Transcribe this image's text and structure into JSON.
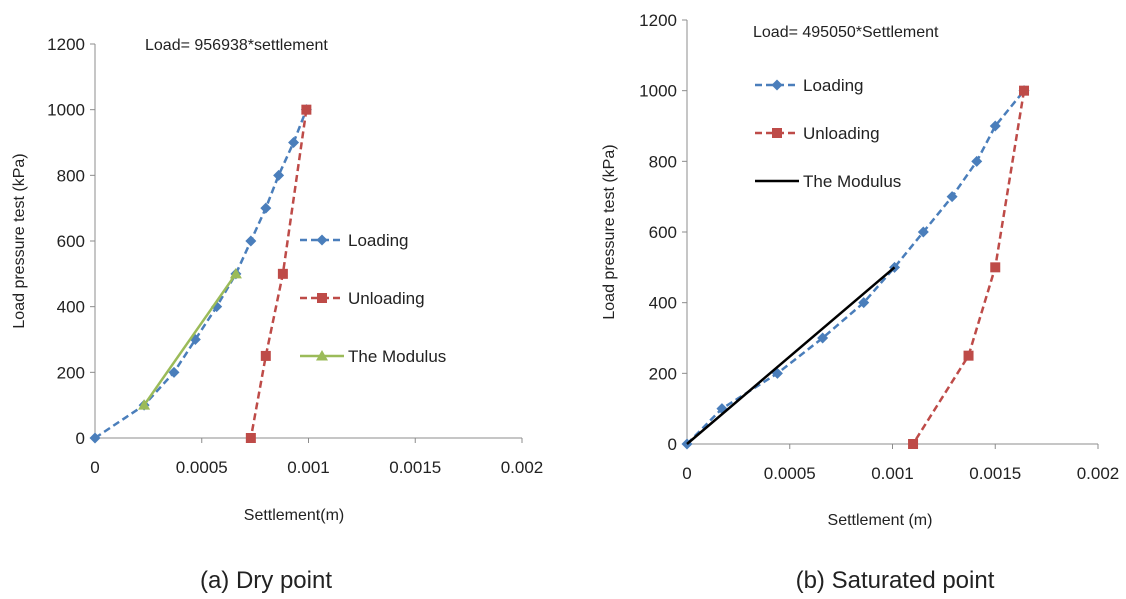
{
  "charts": [
    {
      "caption": "(a) Dry point",
      "chart_data": {
        "type": "line",
        "annotation": "Load= 956938*settlement",
        "xlabel": "Settlement(m)",
        "ylabel": "Load pressure test (kPa)",
        "xlim": [
          0,
          0.002
        ],
        "ylim": [
          0,
          1200
        ],
        "x_ticks": [
          "0",
          "0.0005",
          "0.001",
          "0.0015",
          "0.002"
        ],
        "y_ticks": [
          "0",
          "200",
          "400",
          "600",
          "800",
          "1000",
          "1200"
        ],
        "grid": false,
        "legend_position": "right",
        "series": [
          {
            "name": "Loading",
            "color": "#4a7ebb",
            "marker": "diamond",
            "dash": true,
            "points": [
              [
                0,
                0
              ],
              [
                0.00023,
                100
              ],
              [
                0.00037,
                200
              ],
              [
                0.00047,
                300
              ],
              [
                0.00057,
                400
              ],
              [
                0.00066,
                500
              ],
              [
                0.00073,
                600
              ],
              [
                0.0008,
                700
              ],
              [
                0.00086,
                800
              ],
              [
                0.00093,
                900
              ],
              [
                0.00099,
                1000
              ]
            ]
          },
          {
            "name": "Unloading",
            "color": "#be4b48",
            "marker": "square",
            "dash": true,
            "points": [
              [
                0.00099,
                1000
              ],
              [
                0.00088,
                500
              ],
              [
                0.0008,
                250
              ],
              [
                0.00073,
                0
              ]
            ]
          },
          {
            "name": "The Modulus",
            "color": "#9bbb59",
            "marker": "triangle",
            "dash": false,
            "points": [
              [
                0.00023,
                100
              ],
              [
                0.00066,
                500
              ]
            ]
          }
        ]
      }
    },
    {
      "caption": "(b) Saturated point",
      "chart_data": {
        "type": "line",
        "annotation": "Load= 495050*Settlement",
        "xlabel": "Settlement (m)",
        "ylabel": "Load pressure test (kPa)",
        "xlim": [
          0,
          0.002
        ],
        "ylim": [
          0,
          1200
        ],
        "x_ticks": [
          "0",
          "0.0005",
          "0.001",
          "0.0015",
          "0.002"
        ],
        "y_ticks": [
          "0",
          "200",
          "400",
          "600",
          "800",
          "1000",
          "1200"
        ],
        "grid": false,
        "legend_position": "top-left",
        "series": [
          {
            "name": "Loading",
            "color": "#4a7ebb",
            "marker": "diamond",
            "dash": true,
            "points": [
              [
                0,
                0
              ],
              [
                0.00017,
                100
              ],
              [
                0.00044,
                200
              ],
              [
                0.00066,
                300
              ],
              [
                0.00086,
                400
              ],
              [
                0.00101,
                500
              ],
              [
                0.00115,
                600
              ],
              [
                0.00129,
                700
              ],
              [
                0.00141,
                800
              ],
              [
                0.0015,
                900
              ],
              [
                0.00164,
                1000
              ]
            ]
          },
          {
            "name": "Unloading",
            "color": "#be4b48",
            "marker": "square",
            "dash": true,
            "points": [
              [
                0.00164,
                1000
              ],
              [
                0.0015,
                500
              ],
              [
                0.00137,
                250
              ],
              [
                0.0011,
                0
              ]
            ]
          },
          {
            "name": "The Modulus",
            "color": "#000000",
            "marker": "none",
            "dash": false,
            "points": [
              [
                0,
                0
              ],
              [
                0.00101,
                500
              ]
            ]
          }
        ]
      }
    }
  ]
}
